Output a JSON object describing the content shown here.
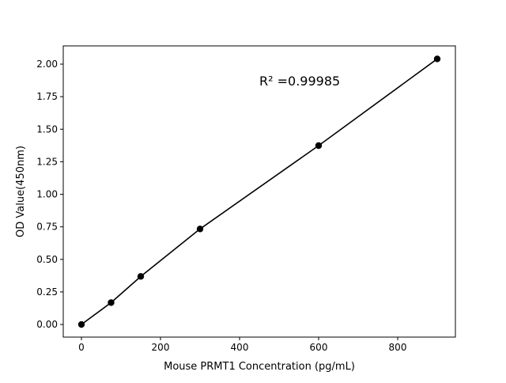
{
  "chart_data": {
    "type": "scatter",
    "title": "",
    "xlabel": "Mouse PRMT1 Concentration (pg/mL)",
    "ylabel": "OD Value(450nm)",
    "xlim": [
      -46,
      946
    ],
    "ylim": [
      -0.097,
      2.14
    ],
    "x_ticks": [
      0,
      200,
      400,
      600,
      800
    ],
    "x_tick_labels": [
      "0",
      "200",
      "400",
      "600",
      "800"
    ],
    "y_ticks": [
      0,
      0.25,
      0.5,
      0.75,
      1.0,
      1.25,
      1.5,
      1.75,
      2.0
    ],
    "y_tick_labels": [
      "0.00",
      "0.25",
      "0.50",
      "0.75",
      "1.00",
      "1.25",
      "1.50",
      "1.75",
      "2.00"
    ],
    "grid": false,
    "series": [
      {
        "x": [
          0,
          75,
          150,
          300,
          600,
          900
        ],
        "y": [
          0.0,
          0.168,
          0.369,
          0.734,
          1.374,
          2.04
        ],
        "color": "#000000",
        "marker": "circle",
        "line": true
      }
    ],
    "annotation": "R² =0.99985"
  }
}
